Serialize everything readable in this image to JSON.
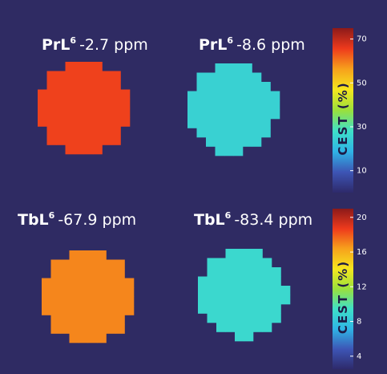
{
  "figure": {
    "colormap": [
      "#2e2a6b",
      "#3d55b5",
      "#2fb4e6",
      "#3ee0c8",
      "#9ae03c",
      "#f5e61e",
      "#f7a21c",
      "#ee3a1c",
      "#8c1a1a"
    ],
    "colorbars": [
      {
        "title": "CEST (%)",
        "lim": [
          0,
          75
        ],
        "ticks": [
          10,
          30,
          50,
          70
        ]
      },
      {
        "title": "CEST (%)",
        "lim": [
          2.5,
          21
        ],
        "ticks": [
          4,
          8,
          12,
          16,
          20
        ]
      }
    ],
    "panels": [
      {
        "label": "PrL",
        "superscript": "6",
        "shift": "-2.7 ppm",
        "colorbar": 0,
        "value": 65
      },
      {
        "label": "PrL",
        "superscript": "6",
        "shift": "-8.6 ppm",
        "colorbar": 0,
        "value": 25
      },
      {
        "label": "TbL",
        "superscript": "6",
        "shift": "-67.9 ppm",
        "colorbar": 1,
        "value": 17
      },
      {
        "label": "TbL",
        "superscript": "6",
        "shift": "-83.4 ppm",
        "colorbar": 1,
        "value": 9
      }
    ]
  }
}
